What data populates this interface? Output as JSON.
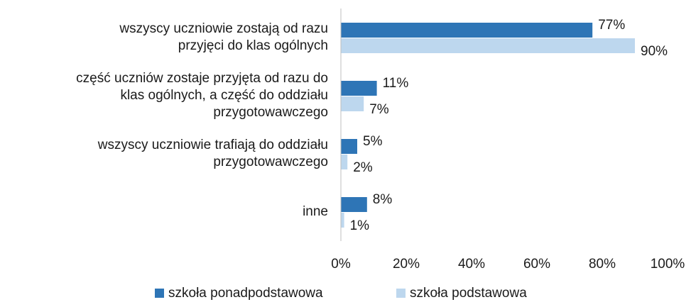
{
  "chart_data": {
    "type": "hbar",
    "categories": [
      "wszyscy uczniowie zostają od razu\nprzyjęci do klas ogólnych",
      "część uczniów zostaje przyjęta od razu do\nklas ogólnych, a część do oddziału\nprzygotowawczego",
      "wszyscy uczniowie trafiają do oddziału\nprzygotowawczego",
      "inne"
    ],
    "series": [
      {
        "name": "szkoła ponadpodstawowa",
        "color": "#2e75b6",
        "values": [
          77,
          11,
          5,
          8
        ],
        "value_labels": [
          "77%",
          "11%",
          "5%",
          "8%"
        ]
      },
      {
        "name": "szkoła podstawowa",
        "color": "#bdd7ee",
        "values": [
          90,
          7,
          2,
          1
        ],
        "value_labels": [
          "90%",
          "7%",
          "2%",
          "1%"
        ]
      }
    ],
    "xlim": [
      0,
      100
    ],
    "xticks": [
      {
        "value": 0,
        "label": "0%"
      },
      {
        "value": 20,
        "label": "20%"
      },
      {
        "value": 40,
        "label": "40%"
      },
      {
        "value": 60,
        "label": "60%"
      },
      {
        "value": 80,
        "label": "80%"
      },
      {
        "value": 100,
        "label": "100%"
      }
    ],
    "legend": "bottom"
  }
}
